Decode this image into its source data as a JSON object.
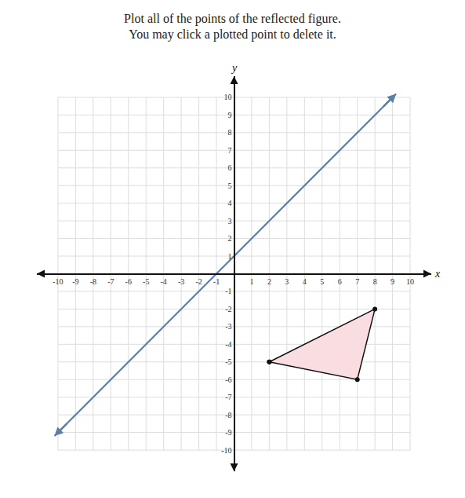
{
  "chart_data": {
    "type": "scatter",
    "title": "Plot all of the points of the reflected figure.",
    "subtitle": "You may click a plotted point to delete it.",
    "xlabel": "x",
    "ylabel": "y",
    "xlim": [
      -11.2,
      11.2
    ],
    "ylim": [
      -11.2,
      11.2
    ],
    "xticks": [
      -10,
      -9,
      -8,
      -7,
      -6,
      -5,
      -4,
      -3,
      -2,
      -1,
      1,
      2,
      3,
      4,
      5,
      6,
      7,
      8,
      9,
      10
    ],
    "yticks": [
      -10,
      -9,
      -8,
      -7,
      -6,
      -5,
      -4,
      -3,
      -2,
      -1,
      1,
      2,
      3,
      4,
      5,
      6,
      7,
      8,
      9,
      10
    ],
    "grid": true,
    "series": [
      {
        "type": "line",
        "color": "#5b7fa6",
        "marker": "arrow",
        "line_style": "solid",
        "x": [
          -10.2,
          9.2
        ],
        "values": [
          -9.2,
          10.2
        ]
      },
      {
        "type": "polygon",
        "color": "#f9dde0",
        "marker": "circle",
        "line_style": "solid",
        "x": [
          2,
          8,
          7
        ],
        "values": [
          -5,
          -2,
          -6
        ]
      }
    ]
  }
}
